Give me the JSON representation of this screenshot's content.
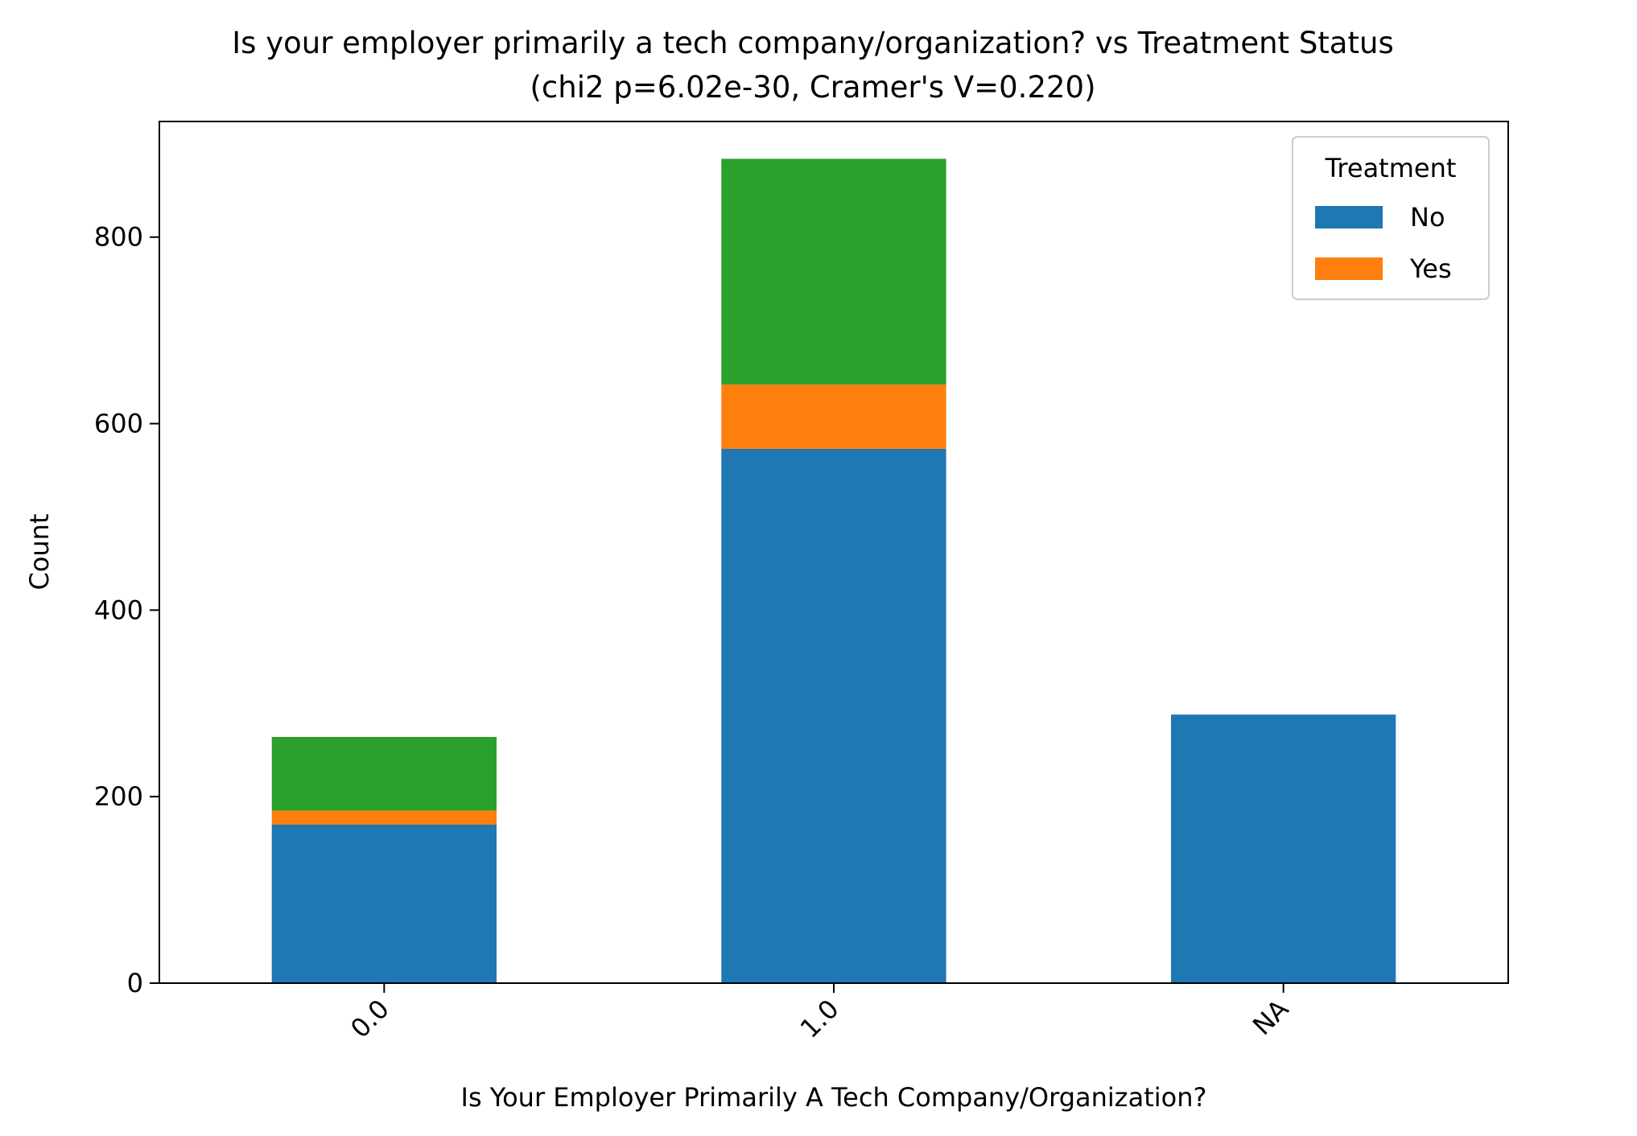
{
  "chart_data": {
    "type": "bar",
    "stacked": true,
    "title": "Is your employer primarily a tech company/organization? vs Treatment Status",
    "subtitle": "(chi2 p=6.02e-30, Cramer's V=0.220)",
    "xlabel": "Is Your Employer Primarily A Tech Company/Organization?",
    "ylabel": "Count",
    "categories": [
      "0.0",
      "1.0",
      "NA"
    ],
    "ylim": [
      0,
      924
    ],
    "yticks": [
      "0",
      "200",
      "400",
      "600",
      "800"
    ],
    "grid": false,
    "legend": {
      "title": "Treatment",
      "placement": "top-right",
      "entries": [
        "No",
        "Yes"
      ]
    },
    "series": [
      {
        "name": "No",
        "color": "#1f77b4",
        "values": [
          170,
          573,
          288
        ]
      },
      {
        "name": "Yes",
        "color": "#ff7f0e",
        "values": [
          15,
          69,
          0
        ]
      },
      {
        "color": "#2ca02c",
        "values": [
          79,
          242,
          0
        ]
      }
    ]
  }
}
